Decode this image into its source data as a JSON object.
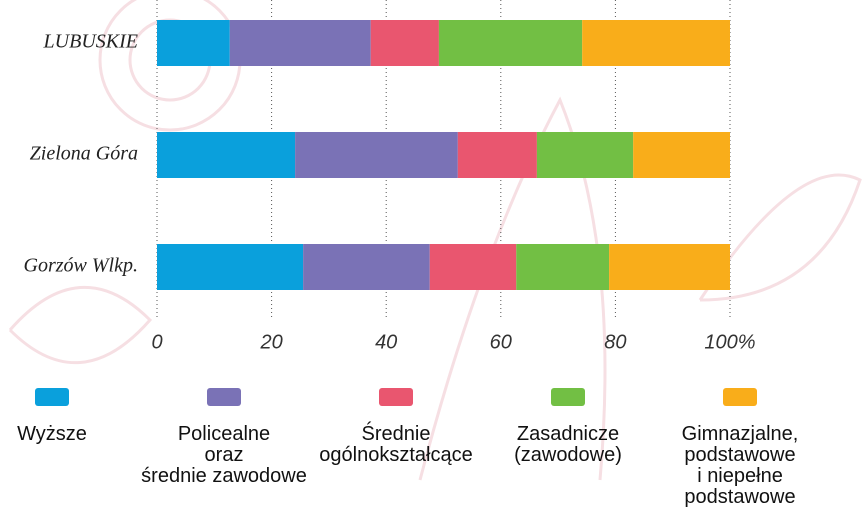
{
  "chart_data": {
    "type": "stacked_barh",
    "categories": [
      "LUBUSKIE",
      "Zielona Góra",
      "Gorzów Wlkp."
    ],
    "series": [
      {
        "name": "Wyższe",
        "color": "#0aa0dc",
        "values": [
          12.7,
          24.1,
          25.5
        ]
      },
      {
        "name": "Policealne\noraz\nśrednie zawodowe",
        "color": "#7a72b6",
        "values": [
          24.6,
          28.4,
          22.1
        ]
      },
      {
        "name": "Średnie\nogólnokształcące",
        "color": "#e9566f",
        "values": [
          11.9,
          13.8,
          15.1
        ]
      },
      {
        "name": "Zasadnicze\n(zawodowe)",
        "color": "#72bf44",
        "values": [
          25.0,
          16.8,
          16.2
        ]
      },
      {
        "name": "Gimnazjalne,\npodstawowe\ni niepełne podstawowe",
        "color": "#f9ad1a",
        "values": [
          25.8,
          16.9,
          21.1
        ]
      }
    ],
    "xlim": [
      0,
      100
    ],
    "xticks": [
      0,
      20,
      40,
      60,
      80,
      {
        "value": 100,
        "label": "100%"
      }
    ],
    "grid": true
  }
}
